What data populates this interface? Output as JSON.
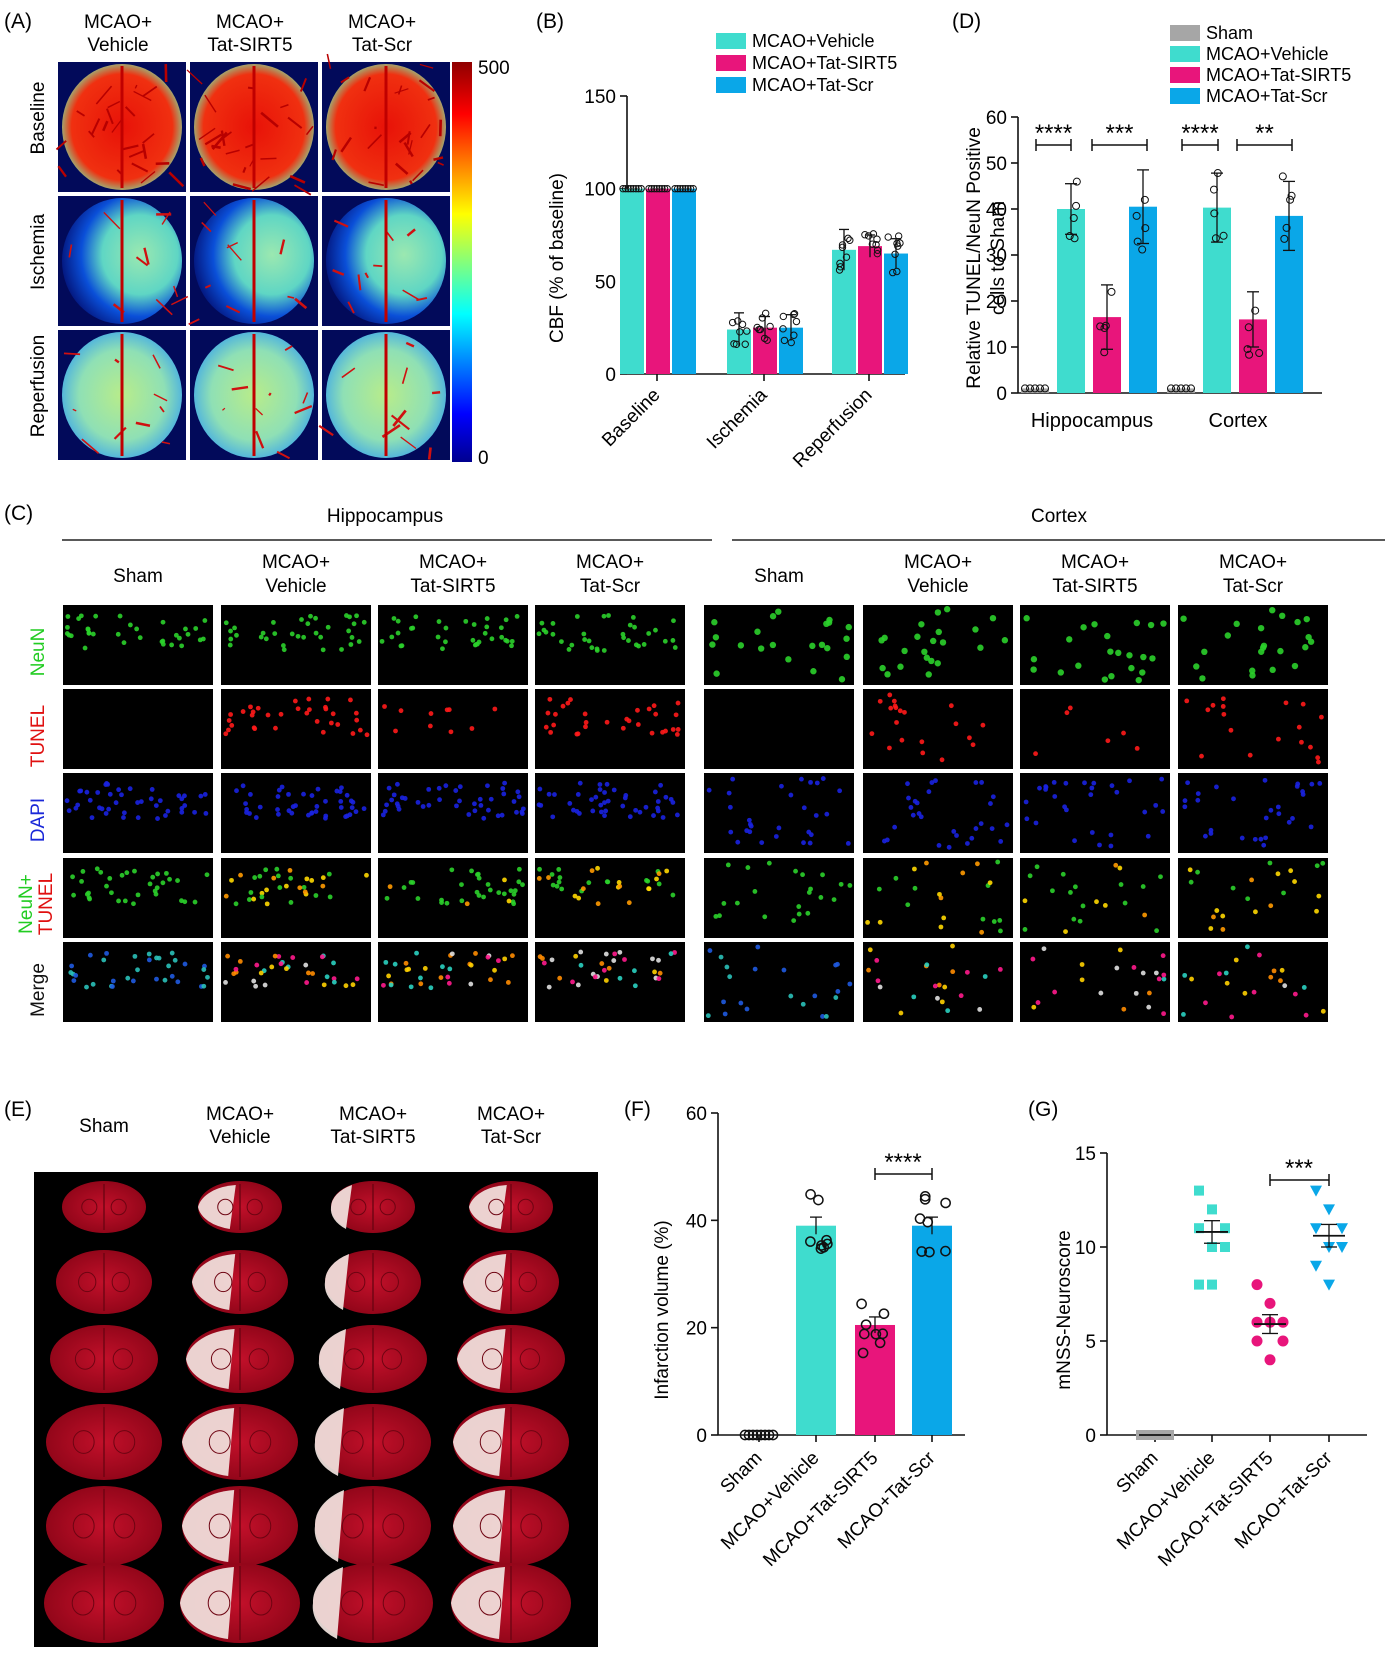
{
  "colors": {
    "sham": "#a6a6a6",
    "vehicle": "#3fdcce",
    "sirt5": "#e8157b",
    "scr": "#0aa7e8"
  },
  "panel_labels": {
    "A": "(A)",
    "B": "(B)",
    "C": "(C)",
    "D": "(D)",
    "E": "(E)",
    "F": "(F)",
    "G": "(G)"
  },
  "panel_a": {
    "columns": [
      [
        "MCAO+",
        "Vehicle"
      ],
      [
        "MCAO+",
        "Tat-SIRT5"
      ],
      [
        "MCAO+",
        "Tat-Scr"
      ]
    ],
    "rows": [
      "Baseline",
      "Ischemia",
      "Reperfusion"
    ],
    "colorbar_max": "500",
    "colorbar_min": "0"
  },
  "panel_c": {
    "regions": [
      "Hippocampus",
      "Cortex"
    ],
    "columns": [
      [
        "Sham"
      ],
      [
        "MCAO+",
        "Vehicle"
      ],
      [
        "MCAO+",
        "Tat-SIRT5"
      ],
      [
        "MCAO+",
        "Tat-Scr"
      ]
    ],
    "rows": [
      "NeuN",
      "TUNEL",
      "DAPI",
      "NeuN+TUNEL",
      "Merge"
    ],
    "row_neun": "NeuN",
    "row_tunel": "TUNEL",
    "row_dapi": "DAPI",
    "row_combo_a": "NeuN+",
    "row_combo_b": "TUNEL",
    "row_merge": "Merge"
  },
  "panel_e": {
    "columns": [
      [
        "Sham"
      ],
      [
        "MCAO+",
        "Vehicle"
      ],
      [
        "MCAO+",
        "Tat-SIRT5"
      ],
      [
        "MCAO+",
        "Tat-Scr"
      ]
    ]
  },
  "chart_data": [
    {
      "id": "B",
      "type": "bar",
      "ylabel": "CBF (% of baseline)",
      "ylim": [
        0,
        150
      ],
      "yticks": [
        0,
        50,
        100,
        150
      ],
      "categories": [
        "Baseline",
        "Ischemia",
        "Reperfusion"
      ],
      "legend": "top-right",
      "series": [
        {
          "name": "MCAO+Vehicle",
          "values": [
            100,
            24,
            67
          ],
          "sd": [
            0,
            9,
            11
          ]
        },
        {
          "name": "MCAO+Tat-SIRT5",
          "values": [
            100,
            25,
            69
          ],
          "sd": [
            0,
            6,
            6
          ]
        },
        {
          "name": "MCAO+Tat-Scr",
          "values": [
            100,
            25,
            65
          ],
          "sd": [
            0,
            7,
            8
          ]
        }
      ]
    },
    {
      "id": "D",
      "type": "bar",
      "ylabel": "Relative TUNEL/NeuN Positive cells to Sham",
      "ylabel_lines": [
        "Relative TUNEL/NeuN Positive",
        "cells to Sham"
      ],
      "ylim": [
        0,
        60
      ],
      "yticks": [
        0,
        10,
        20,
        30,
        40,
        50,
        60
      ],
      "categories": [
        "Hippocampus",
        "Cortex"
      ],
      "legend": "top",
      "series": [
        {
          "name": "Sham",
          "values": [
            1,
            1
          ],
          "sd": [
            0,
            0
          ]
        },
        {
          "name": "MCAO+Vehicle",
          "values": [
            40,
            40.3
          ],
          "sd": [
            5.5,
            7.5
          ]
        },
        {
          "name": "MCAO+Tat-SIRT5",
          "values": [
            16.5,
            16
          ],
          "sd": [
            7,
            6
          ]
        },
        {
          "name": "MCAO+Tat-Scr",
          "values": [
            40.5,
            38.5
          ],
          "sd": [
            8,
            7.5
          ]
        }
      ],
      "annotations": [
        "****",
        "***",
        "****",
        "**"
      ]
    },
    {
      "id": "F",
      "type": "bar",
      "ylabel": "Infarction volume (%)",
      "ylim": [
        0,
        60
      ],
      "yticks": [
        0,
        20,
        40,
        60
      ],
      "categories": [
        "Sham",
        "MCAO+Vehicle",
        "MCAO+Tat-SIRT5",
        "MCAO+Tat-Scr"
      ],
      "values": [
        0,
        39,
        20.5,
        39
      ],
      "sem": [
        0,
        1.6,
        1.5,
        1.6
      ],
      "annotations": [
        "****"
      ]
    },
    {
      "id": "G",
      "type": "scatter",
      "ylabel": "mNSS-Neuroscore",
      "ylim": [
        0,
        15
      ],
      "yticks": [
        0,
        5,
        10,
        15
      ],
      "categories": [
        "Sham",
        "MCAO+Vehicle",
        "MCAO+Tat-SIRT5",
        "MCAO+Tat-Scr"
      ],
      "mean": [
        0,
        10.8,
        5.9,
        10.6
      ],
      "sem": [
        0,
        0.6,
        0.5,
        0.6
      ],
      "annotations": [
        "***"
      ]
    }
  ]
}
